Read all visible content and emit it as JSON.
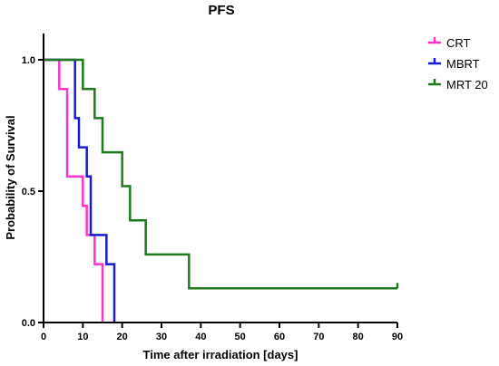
{
  "chart_data": {
    "type": "line",
    "title": "PFS",
    "xlabel": "Time after irradiation [days]",
    "ylabel": "Probability of Survival",
    "xlim": [
      0,
      90
    ],
    "ylim": [
      0,
      1.0
    ],
    "x_ticks": [
      0,
      10,
      20,
      30,
      40,
      50,
      60,
      70,
      80,
      90
    ],
    "x_tick_labels": [
      "0",
      "10",
      "20",
      "30",
      "40",
      "50",
      "60",
      "70",
      "80",
      "90"
    ],
    "y_ticks": [
      0,
      0.5,
      1.0
    ],
    "y_tick_labels": [
      "0.0",
      "0.5",
      "1.0"
    ],
    "grid": false,
    "legend_position": "top-right",
    "step": true,
    "series": [
      {
        "name": "CRT",
        "color": "#ff33cc",
        "x": [
          0,
          4,
          6,
          10,
          11,
          12,
          13,
          15
        ],
        "y": [
          1.0,
          0.889,
          0.556,
          0.444,
          0.333,
          0.333,
          0.222,
          0.0
        ]
      },
      {
        "name": "MBRT",
        "color": "#1a1ad6",
        "x": [
          0,
          8,
          9,
          11,
          12,
          13,
          16,
          18
        ],
        "y": [
          1.0,
          0.778,
          0.667,
          0.556,
          0.333,
          0.333,
          0.222,
          0.0
        ]
      },
      {
        "name": "MRT 20",
        "color": "#1f7a1f",
        "x": [
          0,
          10,
          13,
          15,
          20,
          22,
          26,
          37,
          90
        ],
        "y": [
          1.0,
          0.889,
          0.778,
          0.648,
          0.519,
          0.389,
          0.259,
          0.13,
          0.13
        ],
        "censored_x": [
          90
        ]
      }
    ]
  }
}
